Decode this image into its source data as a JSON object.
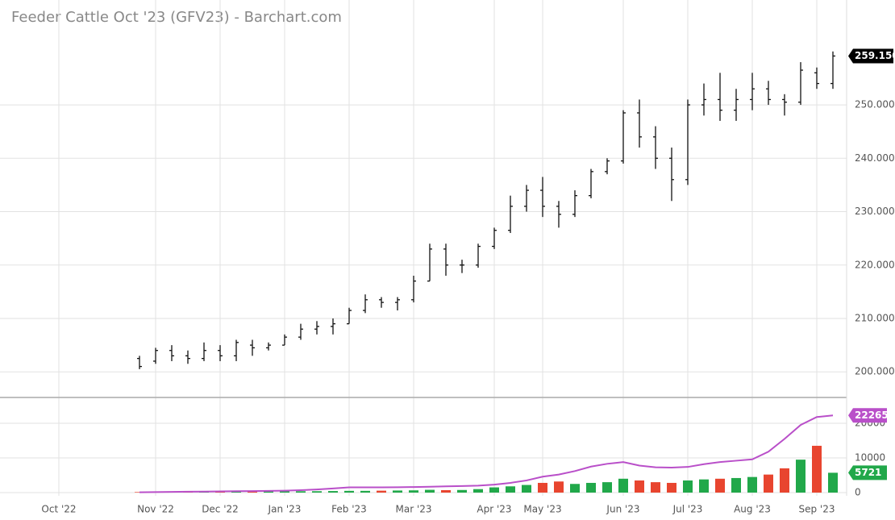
{
  "chart_data": [
    {
      "type": "ohlc",
      "title": "Feeder Cattle Oct '23 (GFV23) - Barchart.com",
      "categories": [
        "Oct '22",
        null,
        null,
        null,
        null,
        null,
        "Nov '22",
        null,
        null,
        null,
        "Dec '22",
        null,
        null,
        null,
        "Jan '23",
        null,
        null,
        null,
        "Feb '23",
        null,
        null,
        null,
        "Mar '23",
        null,
        null,
        null,
        null,
        "Apr '23",
        null,
        null,
        "May '23",
        null,
        null,
        null,
        null,
        "Jun '23",
        null,
        null,
        null,
        "Jul '23",
        null,
        null,
        null,
        "Aug '23",
        null,
        null,
        null,
        "Sep '23",
        null
      ],
      "open": [
        null,
        null,
        null,
        null,
        null,
        202.5,
        202,
        204,
        203,
        202.5,
        204,
        203,
        205,
        204.5,
        205,
        206.5,
        208,
        208.5,
        209,
        211.5,
        213.5,
        213,
        213.5,
        217,
        223,
        220,
        220,
        223.5,
        226.5,
        231,
        234,
        231,
        229.5,
        233,
        237.5,
        239.5,
        248.5,
        244,
        240,
        236,
        250,
        251,
        249,
        251,
        253,
        251,
        250.5,
        256,
        254
      ],
      "high": [
        null,
        null,
        null,
        null,
        null,
        203,
        204.5,
        205,
        204,
        205.5,
        205,
        206,
        206,
        205.5,
        207,
        209,
        209.5,
        210,
        212,
        214.5,
        214,
        214,
        218,
        224,
        224,
        221,
        224,
        227,
        233,
        235,
        236.5,
        232,
        234,
        238,
        240,
        249,
        251,
        246,
        242,
        251,
        254,
        256,
        253,
        256,
        254.5,
        252,
        258,
        257,
        260
      ],
      "low": [
        null,
        null,
        null,
        null,
        null,
        200.5,
        201.5,
        202,
        201.5,
        202,
        202,
        202,
        203,
        204,
        205,
        206,
        207,
        207,
        209,
        211,
        212,
        211.5,
        213,
        217,
        218,
        218.5,
        219.5,
        223,
        226,
        230,
        229,
        227,
        229,
        232.5,
        237,
        239,
        242,
        238,
        232,
        235,
        248,
        247,
        247,
        249,
        250,
        248,
        250,
        253,
        253
      ],
      "close": [
        null,
        null,
        null,
        null,
        null,
        201,
        204,
        203,
        202.5,
        204,
        203,
        205.5,
        204.5,
        205,
        206.5,
        208,
        208.5,
        209,
        211.5,
        213.5,
        213,
        213.5,
        217,
        223,
        220,
        220,
        223.5,
        226.5,
        231,
        234,
        231,
        229.5,
        233,
        237.5,
        239.5,
        248.5,
        244,
        240,
        236,
        250,
        251,
        249,
        251,
        253,
        251,
        250.5,
        256.5,
        254,
        259.15
      ],
      "color": "#111111",
      "last_price": {
        "value": 259.15,
        "label": "259.150"
      },
      "ylim": [
        195.2,
        263.6
      ],
      "yticks": [
        {
          "value": 200,
          "label": "200.000"
        },
        {
          "value": 210,
          "label": "210.000"
        },
        {
          "value": 220,
          "label": "220.000"
        },
        {
          "value": 230,
          "label": "230.000"
        },
        {
          "value": 240,
          "label": "240.000"
        },
        {
          "value": 250,
          "label": "250.000"
        }
      ],
      "grid": true
    },
    {
      "type": "volume",
      "series": [
        {
          "type": "bar",
          "up_color": "#21a84a",
          "down_color": "#e8452f",
          "values": [
            null,
            null,
            null,
            null,
            null,
            150,
            200,
            200,
            250,
            250,
            300,
            300,
            300,
            350,
            350,
            400,
            400,
            450,
            500,
            500,
            550,
            600,
            650,
            800,
            700,
            750,
            1000,
            1500,
            1800,
            2200,
            2800,
            3200,
            2500,
            2800,
            3000,
            4000,
            3500,
            3000,
            2800,
            3500,
            3800,
            4000,
            4200,
            4500,
            5200,
            7000,
            9500,
            13500,
            5721
          ]
        },
        {
          "type": "line",
          "color": "#b94fc9",
          "values": [
            null,
            null,
            null,
            null,
            null,
            100,
            150,
            200,
            250,
            300,
            350,
            400,
            450,
            500,
            550,
            700,
            900,
            1200,
            1500,
            1500,
            1500,
            1550,
            1600,
            1700,
            1800,
            1900,
            2000,
            2300,
            2800,
            3500,
            4600,
            5200,
            6200,
            7500,
            8300,
            8800,
            7800,
            7300,
            7200,
            7400,
            8200,
            8800,
            9200,
            9600,
            11800,
            15500,
            19500,
            21800,
            22265
          ]
        }
      ],
      "ylim": [
        -930,
        27440
      ],
      "yticks": [
        0,
        10000,
        20000
      ],
      "grid": true
    }
  ]
}
